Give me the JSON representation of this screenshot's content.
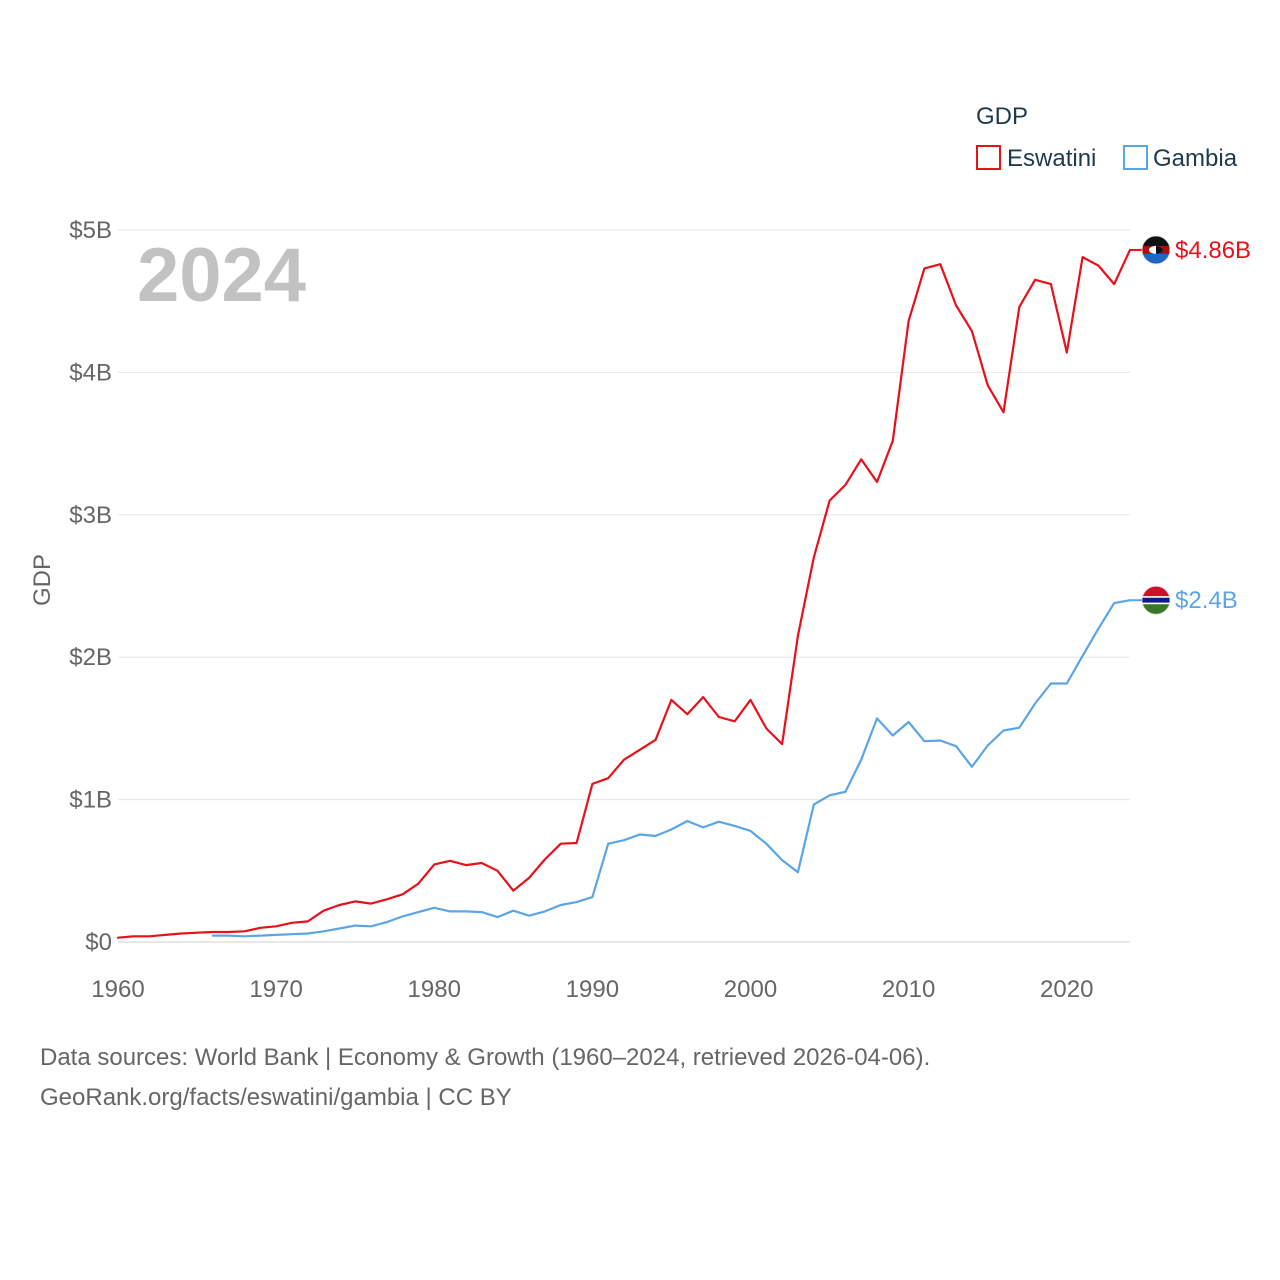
{
  "chart_data": {
    "type": "line",
    "ylabel": "GDP",
    "xlabel": "",
    "xlim": [
      1960,
      2024
    ],
    "ylim": [
      0,
      5
    ],
    "y_unit": "billions USD",
    "y_ticks": [
      {
        "value": 0,
        "label": "$0"
      },
      {
        "value": 1,
        "label": "$1B"
      },
      {
        "value": 2,
        "label": "$2B"
      },
      {
        "value": 3,
        "label": "$3B"
      },
      {
        "value": 4,
        "label": "$4B"
      },
      {
        "value": 5,
        "label": "$5B"
      }
    ],
    "x_ticks": [
      {
        "value": 1960,
        "label": "1960"
      },
      {
        "value": 1970,
        "label": "1970"
      },
      {
        "value": 1980,
        "label": "1980"
      },
      {
        "value": 1990,
        "label": "1990"
      },
      {
        "value": 2000,
        "label": "2000"
      },
      {
        "value": 2010,
        "label": "2010"
      },
      {
        "value": 2020,
        "label": "2020"
      }
    ],
    "grid": true,
    "legend": {
      "title": "GDP",
      "position": "top-right"
    },
    "year_label": "2024",
    "series": [
      {
        "name": "Eswatini",
        "color": "#e8101a",
        "end_label": "$4.86B",
        "flag_icon": "eswatini-flag-icon",
        "x": [
          1960,
          1961,
          1962,
          1963,
          1964,
          1965,
          1966,
          1967,
          1968,
          1969,
          1970,
          1971,
          1972,
          1973,
          1974,
          1975,
          1976,
          1977,
          1978,
          1979,
          1980,
          1981,
          1982,
          1983,
          1984,
          1985,
          1986,
          1987,
          1988,
          1989,
          1990,
          1991,
          1992,
          1993,
          1994,
          1995,
          1996,
          1997,
          1998,
          1999,
          2000,
          2001,
          2002,
          2003,
          2004,
          2005,
          2006,
          2007,
          2008,
          2009,
          2010,
          2011,
          2012,
          2013,
          2014,
          2015,
          2016,
          2017,
          2018,
          2019,
          2020,
          2021,
          2022,
          2023,
          2024
        ],
        "values": [
          0.03,
          0.04,
          0.04,
          0.05,
          0.06,
          0.065,
          0.07,
          0.07,
          0.075,
          0.1,
          0.11,
          0.135,
          0.145,
          0.22,
          0.26,
          0.285,
          0.27,
          0.3,
          0.335,
          0.41,
          0.545,
          0.57,
          0.54,
          0.555,
          0.5,
          0.36,
          0.45,
          0.58,
          0.69,
          0.695,
          1.11,
          1.15,
          1.28,
          1.35,
          1.42,
          1.7,
          1.6,
          1.72,
          1.58,
          1.55,
          1.7,
          1.5,
          1.39,
          2.15,
          2.7,
          3.1,
          3.21,
          3.39,
          3.23,
          3.52,
          4.36,
          4.73,
          4.76,
          4.47,
          4.29,
          3.91,
          3.72,
          4.46,
          4.65,
          4.62,
          4.14,
          4.81,
          4.75,
          4.62,
          4.86
        ]
      },
      {
        "name": "Gambia",
        "color": "#5aa5e6",
        "end_label": "$2.4B",
        "flag_icon": "gambia-flag-icon",
        "x": [
          1966,
          1967,
          1968,
          1969,
          1970,
          1971,
          1972,
          1973,
          1974,
          1975,
          1976,
          1977,
          1978,
          1979,
          1980,
          1981,
          1982,
          1983,
          1984,
          1985,
          1986,
          1987,
          1988,
          1989,
          1990,
          1991,
          1992,
          1993,
          1994,
          1995,
          1996,
          1997,
          1998,
          1999,
          2000,
          2001,
          2002,
          2003,
          2004,
          2005,
          2006,
          2007,
          2008,
          2009,
          2010,
          2011,
          2012,
          2013,
          2014,
          2015,
          2016,
          2017,
          2018,
          2019,
          2020,
          2021,
          2022,
          2023,
          2024
        ],
        "values": [
          0.045,
          0.045,
          0.04,
          0.045,
          0.05,
          0.055,
          0.06,
          0.075,
          0.095,
          0.115,
          0.11,
          0.14,
          0.18,
          0.21,
          0.24,
          0.215,
          0.215,
          0.21,
          0.175,
          0.22,
          0.185,
          0.215,
          0.26,
          0.28,
          0.315,
          0.69,
          0.715,
          0.755,
          0.745,
          0.79,
          0.85,
          0.805,
          0.845,
          0.815,
          0.78,
          0.69,
          0.575,
          0.49,
          0.965,
          1.03,
          1.055,
          1.28,
          1.57,
          1.45,
          1.545,
          1.41,
          1.415,
          1.375,
          1.23,
          1.38,
          1.485,
          1.505,
          1.675,
          1.815,
          1.815,
          2.01,
          2.2,
          2.38,
          2.4
        ]
      }
    ]
  },
  "footer": {
    "line1": "Data sources: World Bank | Economy & Growth (1960–2024, retrieved 2026-04-06).",
    "line2": "GeoRank.org/facts/eswatini/gambia | CC BY"
  }
}
